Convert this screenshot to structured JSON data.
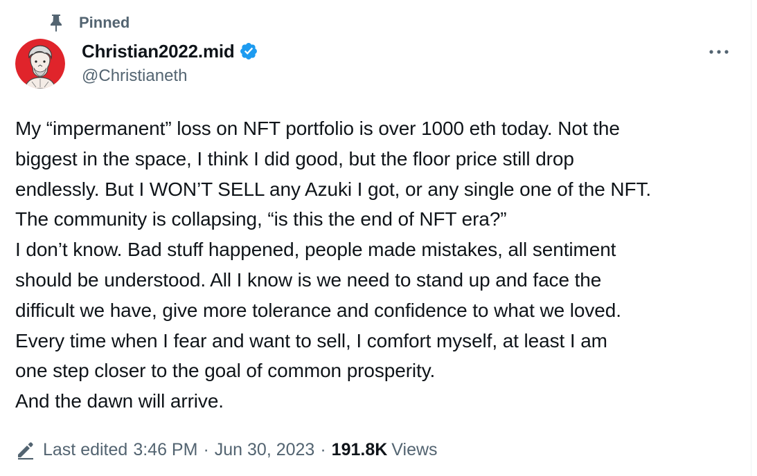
{
  "pinned": {
    "label": "Pinned",
    "icon": "pin-icon"
  },
  "author": {
    "display_name": "Christian2022.mid",
    "handle": "@Christianeth",
    "verified": true,
    "verified_color": "#1d9bf0",
    "avatar_bg": "#e0242b"
  },
  "tweet": {
    "text": "My “impermanent” loss on NFT portfolio is over 1000 eth today. Not the\nbiggest in the space, I think I did good, but the floor price still drop\nendlessly. But I WON’T SELL any Azuki I got, or any single one of the NFT.\nThe community is collapsing, “is this the end of NFT era?”\nI don’t know. Bad stuff happened, people made mistakes, all sentiment\nshould be understood. All I know is we need to stand up and face the\ndifficult we have, give more tolerance and confidence to what we loved.\nEvery time when I fear and want to sell, I comfort myself, at least I am\none step closer to the goal of common prosperity.\nAnd the dawn will arrive."
  },
  "meta": {
    "edited_label": "Last edited",
    "time": "3:46 PM",
    "date": "Jun 30, 2023",
    "separator": "·",
    "views_count": "191.8K",
    "views_label": "Views"
  },
  "colors": {
    "text_primary": "#0f1419",
    "text_secondary": "#536471"
  }
}
